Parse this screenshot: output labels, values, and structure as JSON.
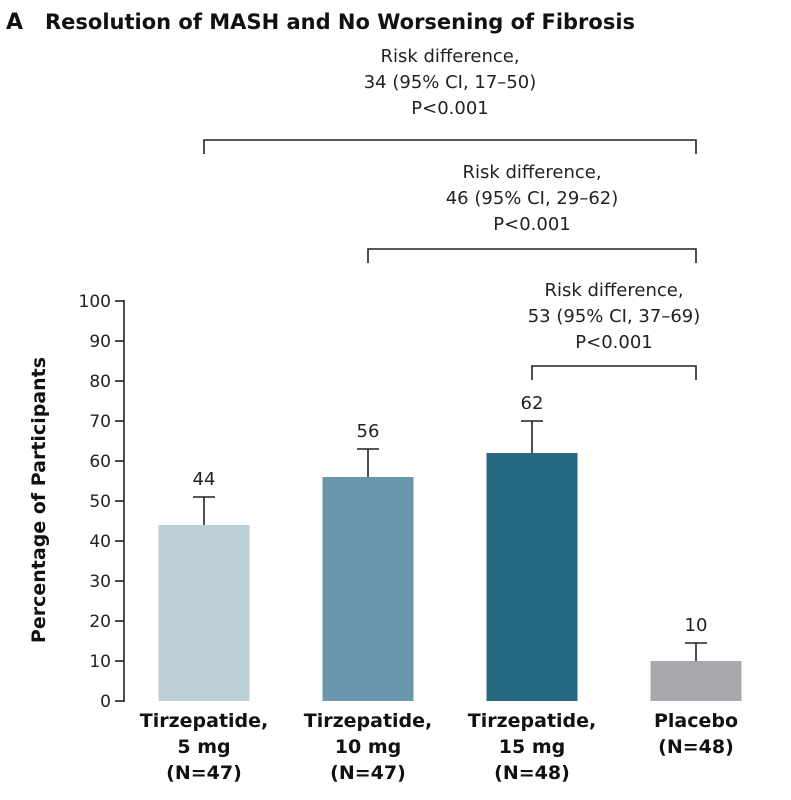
{
  "panel": {
    "letter": "A",
    "title": "Resolution of MASH and No Worsening of Fibrosis"
  },
  "chart_data": {
    "type": "bar",
    "title": "Resolution of MASH and No Worsening of Fibrosis",
    "ylabel": "Percentage of Participants",
    "xlabel": "",
    "ylim": [
      0,
      100
    ],
    "yticks": [
      0,
      10,
      20,
      30,
      40,
      50,
      60,
      70,
      80,
      90,
      100
    ],
    "grid": false,
    "categories": [
      {
        "lines": [
          "Tirzepatide,",
          "5 mg",
          "(N=47)"
        ]
      },
      {
        "lines": [
          "Tirzepatide,",
          "10 mg",
          "(N=47)"
        ]
      },
      {
        "lines": [
          "Tirzepatide,",
          "15 mg",
          "(N=48)"
        ]
      },
      {
        "lines": [
          "Placebo",
          "(N=48)"
        ]
      }
    ],
    "values": [
      44,
      56,
      62,
      10
    ],
    "value_labels": [
      "44",
      "56",
      "62",
      "10"
    ],
    "error_upper": [
      51,
      63,
      70,
      14.5
    ],
    "colors": [
      "#bccfd9",
      "#6a97ab",
      "#266981",
      "#a6a8ab"
    ],
    "annotations": [
      {
        "from": 0,
        "to": 3,
        "lines": [
          "Risk difference,",
          "34 (95% CI, 17–50)",
          "P<0.001"
        ]
      },
      {
        "from": 1,
        "to": 3,
        "lines": [
          "Risk difference,",
          "46 (95% CI, 29–62)",
          "P<0.001"
        ]
      },
      {
        "from": 2,
        "to": 3,
        "lines": [
          "Risk difference,",
          "53 (95% CI, 37–69)",
          "P<0.001"
        ]
      }
    ]
  }
}
